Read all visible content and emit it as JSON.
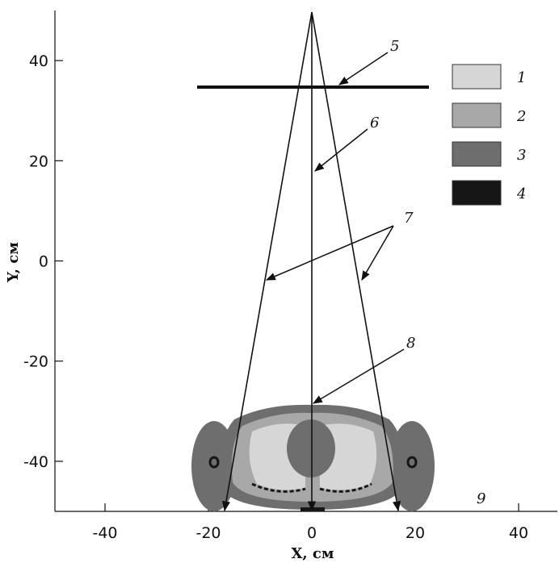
{
  "figure": {
    "x_label": "X, см",
    "y_label": "Y, см",
    "xlim": [
      -50,
      47.5
    ],
    "ylim": [
      -50,
      50
    ],
    "xticks": [
      -40,
      -20,
      0,
      20,
      40
    ],
    "yticks": [
      -40,
      -20,
      0,
      20,
      40
    ],
    "legend": [
      {
        "label": "1",
        "color": "#d6d6d6"
      },
      {
        "label": "2",
        "color": "#a8a8a8"
      },
      {
        "label": "3",
        "color": "#6e6e6e"
      },
      {
        "label": "4",
        "color": "#161616"
      }
    ],
    "callouts": [
      "5",
      "6",
      "7",
      "8",
      "9"
    ]
  }
}
